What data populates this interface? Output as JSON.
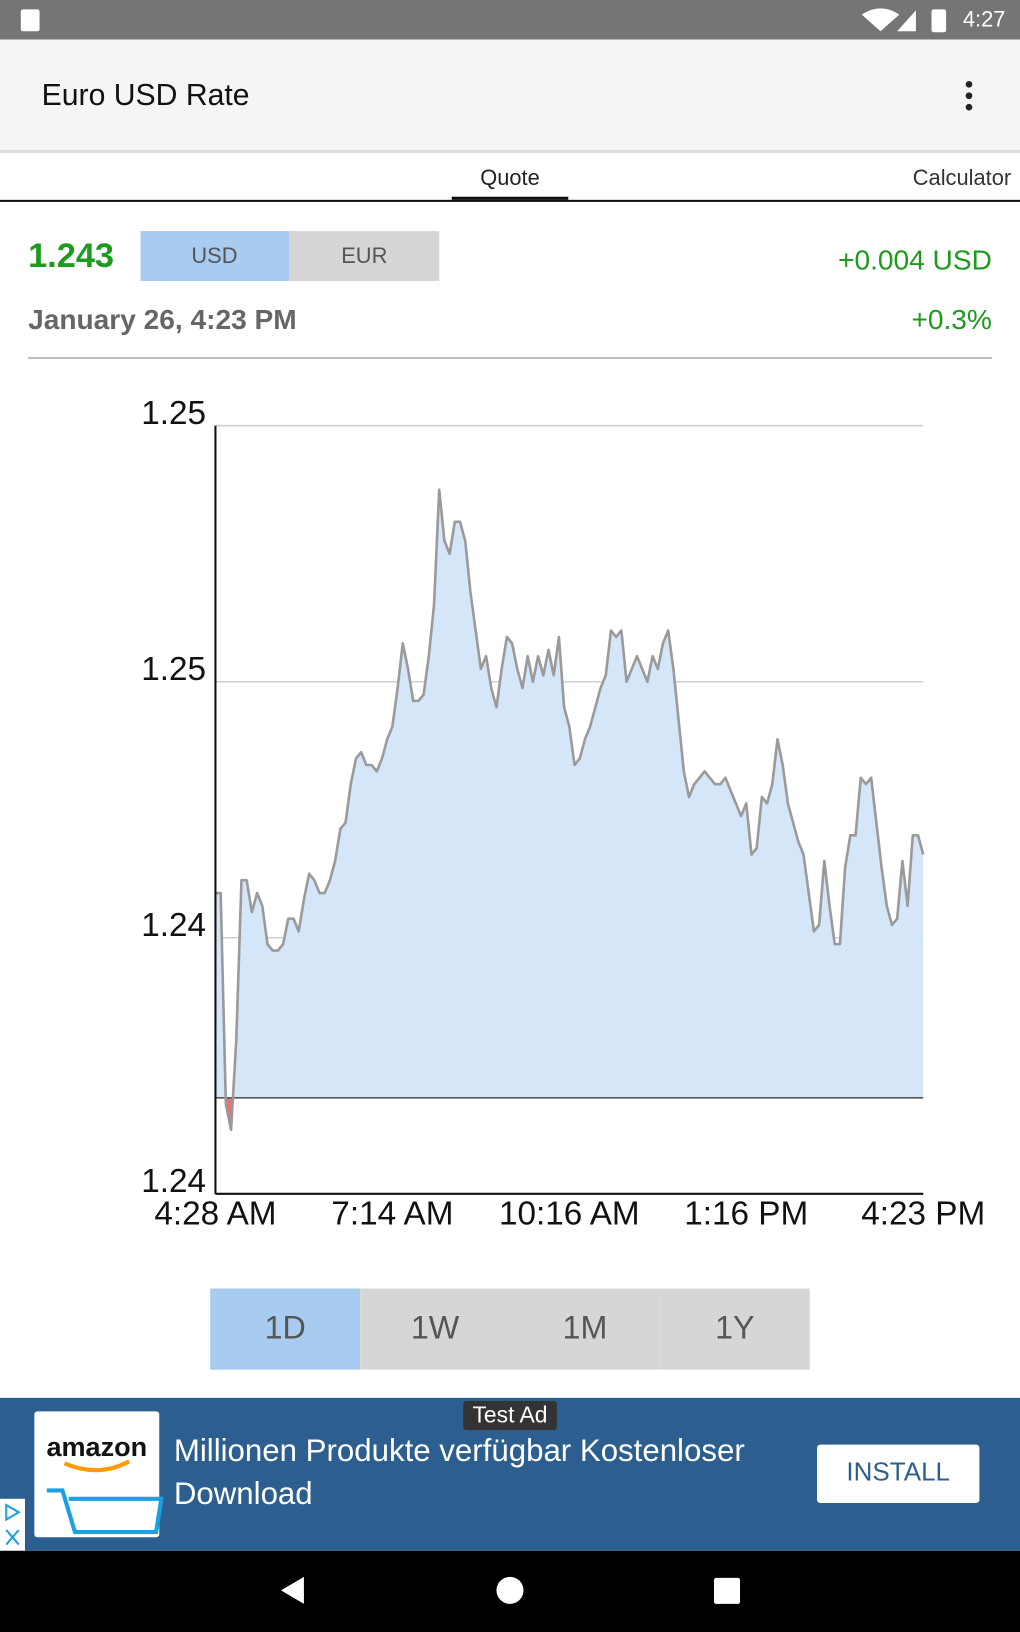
{
  "status_bar": {
    "time": "4:27"
  },
  "app_bar": {
    "title": "Euro USD Rate"
  },
  "tabs": [
    "Quote",
    "Calculator"
  ],
  "quote": {
    "rate": "1.243",
    "currencies": [
      "USD",
      "EUR"
    ],
    "change": "+0.004 USD",
    "change_percent": "+0.3%",
    "date": "January 26, 4:23 PM"
  },
  "chart_data": {
    "type": "area",
    "categories": [
      "4:28 AM",
      null,
      null,
      null,
      null,
      null,
      null,
      null,
      null,
      null,
      null,
      null,
      null,
      null,
      null,
      null,
      null,
      null,
      null,
      null,
      null,
      null,
      null,
      null,
      null,
      null,
      null,
      null,
      null,
      null,
      null,
      null,
      null,
      null,
      "7:14 AM",
      null,
      null,
      null,
      null,
      null,
      null,
      null,
      null,
      null,
      null,
      null,
      null,
      null,
      null,
      null,
      null,
      null,
      null,
      null,
      null,
      null,
      null,
      null,
      null,
      null,
      null,
      null,
      null,
      null,
      null,
      null,
      null,
      null,
      "10:16 AM",
      null,
      null,
      null,
      null,
      null,
      null,
      null,
      null,
      null,
      null,
      null,
      null,
      null,
      null,
      null,
      null,
      null,
      null,
      null,
      null,
      null,
      null,
      null,
      null,
      null,
      null,
      null,
      null,
      null,
      null,
      null,
      null,
      null,
      "1:16 PM",
      null,
      null,
      null,
      null,
      null,
      null,
      null,
      null,
      null,
      null,
      null,
      null,
      null,
      null,
      null,
      null,
      null,
      null,
      null,
      null,
      null,
      null,
      null,
      null,
      null,
      null,
      null,
      null,
      null,
      null,
      null,
      null,
      null,
      "4:23 PM"
    ],
    "values": [
      1.2427,
      1.2427,
      1.2394,
      1.239,
      1.2404,
      1.2429,
      1.2429,
      1.2424,
      1.2427,
      1.2425,
      1.2419,
      1.2418,
      1.2418,
      1.2419,
      1.2423,
      1.2423,
      1.2421,
      1.2426,
      1.243,
      1.2429,
      1.2427,
      1.2427,
      1.2429,
      1.2432,
      1.2437,
      1.2438,
      1.2444,
      1.2448,
      1.2449,
      1.2447,
      1.2447,
      1.2446,
      1.2448,
      1.2451,
      1.2453,
      1.2459,
      1.2466,
      1.2462,
      1.2457,
      1.2457,
      1.2458,
      1.2464,
      1.2472,
      1.249,
      1.2482,
      1.248,
      1.2485,
      1.2485,
      1.2482,
      1.2474,
      1.2468,
      1.2462,
      1.2464,
      1.2459,
      1.2456,
      1.2462,
      1.2467,
      1.2466,
      1.2462,
      1.2459,
      1.2464,
      1.246,
      1.2464,
      1.2461,
      1.2465,
      1.2461,
      1.2467,
      1.2456,
      1.2453,
      1.2447,
      1.2448,
      1.2451,
      1.2453,
      1.2456,
      1.2459,
      1.2461,
      1.2468,
      1.2467,
      1.2468,
      1.246,
      1.2462,
      1.2464,
      1.2462,
      1.246,
      1.2464,
      1.2462,
      1.2466,
      1.2468,
      1.2462,
      1.2454,
      1.2446,
      1.2442,
      1.2444,
      1.2445,
      1.2446,
      1.2445,
      1.2444,
      1.2444,
      1.2445,
      1.2443,
      1.2441,
      1.2439,
      1.2441,
      1.2433,
      1.2434,
      1.2442,
      1.2441,
      1.2444,
      1.2451,
      1.2447,
      1.2441,
      1.2438,
      1.2435,
      1.2433,
      1.2427,
      1.2421,
      1.2422,
      1.2432,
      1.2425,
      1.2419,
      1.2419,
      1.2431,
      1.2436,
      1.2436,
      1.2445,
      1.2444,
      1.2445,
      1.2438,
      1.2431,
      1.2425,
      1.2422,
      1.2423,
      1.2432,
      1.2425,
      1.2436,
      1.2436,
      1.2433
    ],
    "color": "#d5e6f9",
    "line_color": "#9a9a9a",
    "below_color": "#e57373",
    "reference_line": 1.2395,
    "ylim": [
      1.238,
      1.25
    ],
    "yticks": [
      {
        "value": 1.238,
        "label": "1.24"
      },
      {
        "value": 1.242,
        "label": "1.24"
      },
      {
        "value": 1.246,
        "label": "1.25"
      },
      {
        "value": 1.25,
        "label": "1.25"
      }
    ],
    "grid": true
  },
  "ranges": [
    "1D",
    "1W",
    "1M",
    "1Y"
  ],
  "ad": {
    "badge": "Test Ad",
    "brand": "amazon",
    "text_lines": [
      "Millionen Produkte verfügbar Kostenloser",
      "Download"
    ],
    "button": "INSTALL"
  }
}
